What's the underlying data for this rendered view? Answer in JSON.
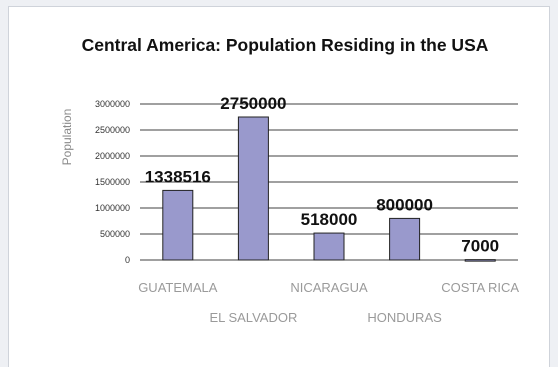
{
  "chart_data": {
    "type": "bar",
    "title": "Central America: Population Residing in the USA",
    "ylabel": "Population",
    "xlabel": "",
    "categories": [
      "GUATEMALA",
      "EL SALVADOR",
      "NICARAGUA",
      "HONDURAS",
      "COSTA RICA"
    ],
    "values": [
      1338516,
      2750000,
      518000,
      800000,
      7000
    ],
    "data_labels": [
      "1338516",
      "2750000",
      "518000",
      "800000",
      "7000"
    ],
    "ylim": [
      0,
      3000000
    ],
    "yticks": [
      0,
      500000,
      1000000,
      1500000,
      2000000,
      2500000,
      3000000
    ],
    "ytick_labels": [
      "0",
      "500000",
      "1000000",
      "1500000",
      "2000000",
      "2500000",
      "3000000"
    ],
    "grid": true,
    "legend": "none",
    "colors": {
      "bar": "#9999cc",
      "bar_border": "#222222",
      "grid": "#000000"
    }
  }
}
